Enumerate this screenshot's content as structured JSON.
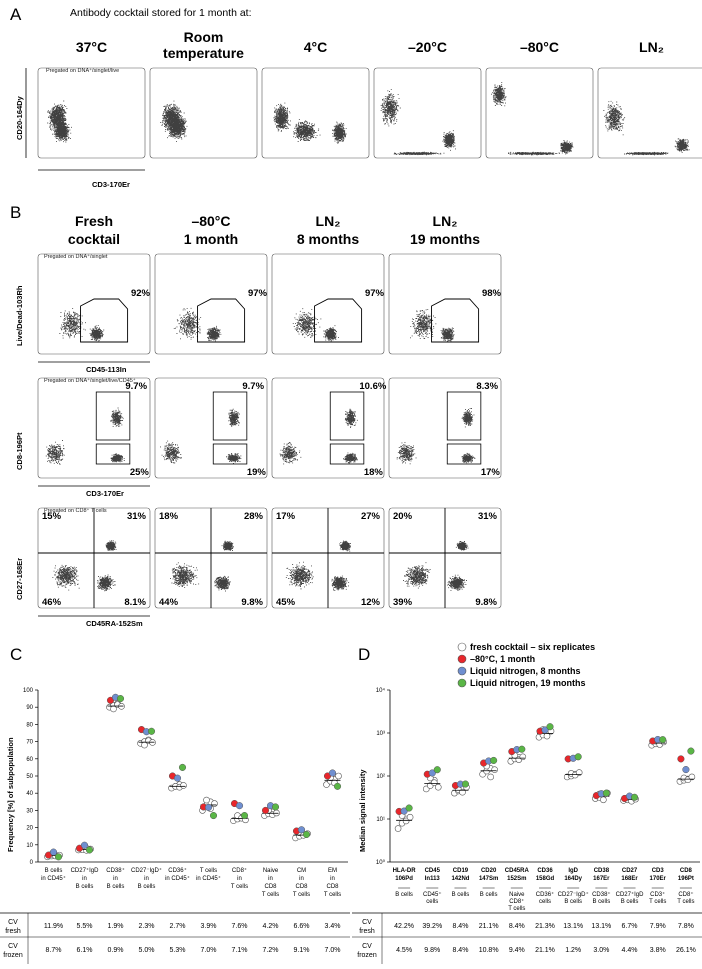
{
  "panel_a": {
    "letter": "A",
    "title": "Antibody cocktail stored for 1 month at:",
    "gate_note": "Pregated on DNA⁺/singlet/live",
    "x_label": "CD3-170Er",
    "y_label": "CD20-164Dy",
    "conditions": [
      "37°C",
      "Room temperature",
      "4°C",
      "–20°C",
      "–80°C",
      "LN₂"
    ]
  },
  "panel_b": {
    "letter": "B",
    "conditions": [
      "Fresh cocktail",
      "–80°C 1 month",
      "LN₂ 8 months",
      "LN₂ 19 months"
    ],
    "rows": [
      {
        "gate_note": "Pregated on DNA⁺/singlet",
        "x_label": "CD45-113In",
        "y_label": "Live/Dead-103Rh",
        "percents": [
          [
            "92%"
          ],
          [
            "97%"
          ],
          [
            "97%"
          ],
          [
            "98%"
          ]
        ]
      },
      {
        "gate_note": "Pregated on DNA⁺/singlet/live/CD45⁺",
        "x_label": "CD3-170Er",
        "y_label": "CD8-196Pt",
        "percents": [
          [
            "9.7%",
            "25%"
          ],
          [
            "9.7%",
            "19%"
          ],
          [
            "10.6%",
            "18%"
          ],
          [
            "8.3%",
            "17%"
          ]
        ]
      },
      {
        "gate_note": "Pregated on CD8⁺ T cells",
        "x_label": "CD45RA-152Sm",
        "y_label": "CD27-168Er",
        "percents": [
          [
            "15%",
            "31%",
            "46%",
            "8.1%"
          ],
          [
            "18%",
            "28%",
            "44%",
            "9.8%"
          ],
          [
            "17%",
            "27%",
            "45%",
            "12%"
          ],
          [
            "20%",
            "31%",
            "39%",
            "9.8%"
          ]
        ]
      }
    ]
  },
  "legend": [
    {
      "label": "fresh cocktail – six replicates",
      "color": "#ffffff"
    },
    {
      "label": "–80°C, 1 month",
      "color": "#e8262b"
    },
    {
      "label": "Liquid nitrogen, 8 months",
      "color": "#6f8fd0"
    },
    {
      "label": "Liquid nitrogen, 19 months",
      "color": "#5ab646"
    }
  ],
  "chart_data": [
    {
      "type": "scatter",
      "panel": "C",
      "ylabel": "Frequency [%] of subpopulation",
      "ylim": [
        0,
        100
      ],
      "yticks": [
        "0",
        "10",
        "20",
        "30",
        "40",
        "50",
        "60",
        "70",
        "80",
        "90",
        "100"
      ],
      "categories": [
        "B cells in CD45⁺",
        "CD27⁺IgD in B cells",
        "CD38⁺ in B cells",
        "CD27⁻IgD⁺ in B cells",
        "CD36⁺ in CD45⁺",
        "T cells in CD45⁺",
        "CD8⁺ in T cells",
        "Naive in CD8 T cells",
        "CM in CD8 T cells",
        "EM in CD8 T cells"
      ],
      "series": [
        {
          "name": "fresh cocktail – six replicates",
          "values": [
            [
              3,
              3.5,
              4,
              4.5,
              3.5,
              4
            ],
            [
              7,
              7.5,
              8,
              7.2,
              6.8,
              7.5
            ],
            [
              90,
              91,
              92,
              89,
              91.5,
              90.5
            ],
            [
              69,
              70,
              71,
              68,
              70.5,
              69.5
            ],
            [
              43,
              44,
              45,
              44,
              43.5,
              44.5
            ],
            [
              30,
              33,
              35,
              36,
              31,
              34
            ],
            [
              24,
              25,
              26,
              27,
              25.5,
              24.5
            ],
            [
              27,
              28,
              29,
              30,
              27.5,
              28.5
            ],
            [
              14,
              15,
              16,
              17,
              15.5,
              16.5
            ],
            [
              45,
              47,
              48,
              49,
              46,
              50
            ]
          ]
        },
        {
          "name": "–80°C, 1 month",
          "values": [
            4,
            8,
            94,
            77,
            50,
            32,
            34,
            30,
            18,
            50
          ]
        },
        {
          "name": "Liquid nitrogen, 8 months",
          "values": [
            4,
            8,
            94,
            74,
            47,
            30,
            31,
            31,
            17,
            50
          ]
        },
        {
          "name": "Liquid nitrogen, 19 months",
          "values": [
            3,
            7,
            95,
            76,
            55,
            27,
            27,
            32,
            16,
            44
          ]
        }
      ],
      "cv_rows": [
        {
          "label": "CV fresh",
          "values": [
            "11.9%",
            "5.5%",
            "1.9%",
            "2.3%",
            "2.7%",
            "3.9%",
            "7.6%",
            "4.2%",
            "6.6%",
            "3.4%"
          ]
        },
        {
          "label": "CV frozen",
          "values": [
            "8.7%",
            "6.1%",
            "0.9%",
            "5.0%",
            "5.3%",
            "7.0%",
            "7.1%",
            "7.2%",
            "9.1%",
            "7.0%"
          ]
        }
      ]
    },
    {
      "type": "scatter",
      "panel": "D",
      "ylabel": "Median signal intensity",
      "yscale": "log",
      "ylim": [
        1,
        10000
      ],
      "categories": [
        "HLA-DR 106Pd",
        "CD45 In113",
        "CD19 142Nd",
        "CD20 147Sm",
        "CD45RA 152Sm",
        "CD36 158Gd",
        "IgD 164Dy",
        "CD38 167Er",
        "CD27 168Er",
        "CD3 170Er",
        "CD8 196Pt"
      ],
      "subcategories": [
        "B cells",
        "CD45⁺ cells",
        "B cells",
        "B cells",
        "Naive CD8⁺ T cells",
        "CD36⁺ cells",
        "CD27⁻IgD⁺ B cells",
        "CD38⁺ B cells",
        "CD27⁺IgD B cells",
        "CD3⁺ T cells",
        "CD8⁺ T cells"
      ],
      "series": [
        {
          "name": "fresh cocktail – six replicates",
          "values": [
            [
              6,
              8,
              10,
              12,
              9,
              11
            ],
            [
              50,
              60,
              80,
              90,
              70,
              55
            ],
            [
              40,
              45,
              50,
              48,
              42,
              55
            ],
            [
              110,
              130,
              150,
              170,
              95,
              140
            ],
            [
              220,
              250,
              270,
              300,
              240,
              280
            ],
            [
              800,
              900,
              1000,
              1200,
              850,
              1100
            ],
            [
              95,
              100,
              110,
              115,
              105,
              120
            ],
            [
              30,
              32,
              35,
              38,
              28,
              40
            ],
            [
              27,
              28,
              30,
              31,
              26,
              29
            ],
            [
              520,
              560,
              600,
              650,
              540,
              620
            ],
            [
              75,
              80,
              85,
              90,
              82,
              95
            ]
          ]
        },
        {
          "name": "–80°C, 1 month",
          "values": [
            15,
            110,
            60,
            200,
            370,
            1100,
            250,
            35,
            30,
            650,
            250
          ]
        },
        {
          "name": "Liquid nitrogen, 8 months",
          "values": [
            13,
            100,
            55,
            190,
            350,
            1000,
            220,
            33,
            29,
            600,
            120
          ]
        },
        {
          "name": "Liquid nitrogen, 19 months",
          "values": [
            18,
            140,
            65,
            230,
            420,
            1400,
            280,
            40,
            32,
            700,
            380
          ]
        }
      ],
      "cv_rows": [
        {
          "label": "CV fresh",
          "values": [
            "42.2%",
            "39.2%",
            "8.4%",
            "21.1%",
            "8.4%",
            "21.3%",
            "13.1%",
            "13.1%",
            "6.7%",
            "7.9%",
            "7.8%"
          ]
        },
        {
          "label": "CV frozen",
          "values": [
            "4.5%",
            "9.8%",
            "8.4%",
            "10.8%",
            "9.4%",
            "21.1%",
            "1.2%",
            "3.0%",
            "4.4%",
            "3.8%",
            "26.1%"
          ]
        }
      ]
    }
  ]
}
